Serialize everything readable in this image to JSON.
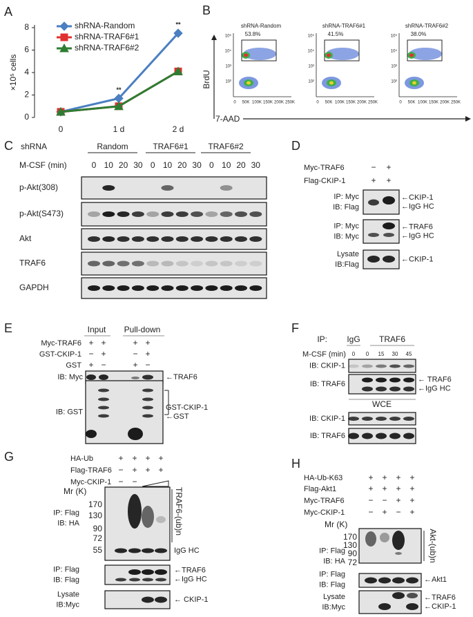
{
  "chart_data": {
    "type": "line",
    "x": [
      "0",
      "1 d",
      "2 d"
    ],
    "ylabel": "×10⁵ cells",
    "ylim": [
      0,
      8
    ],
    "yticks": [
      0,
      2,
      4,
      6,
      8
    ],
    "series": [
      {
        "name": "shRNA-Random",
        "color": "#4a7fc1",
        "marker": "diamond",
        "values": [
          0.5,
          1.7,
          7.5
        ]
      },
      {
        "name": "shRNA-TRAF6#1",
        "color": "#e03030",
        "marker": "square",
        "values": [
          0.5,
          1.0,
          4.1
        ]
      },
      {
        "name": "shRNA-TRAF6#2",
        "color": "#2e7d32",
        "marker": "triangle",
        "values": [
          0.5,
          1.0,
          4.1
        ]
      }
    ],
    "annotations": [
      "**",
      "**"
    ]
  },
  "panel_labels": [
    "A",
    "B",
    "C",
    "D",
    "E",
    "F",
    "G",
    "H"
  ],
  "panel_b": {
    "titles": [
      "shRNA-Random",
      "shRNA-TRAF6#1",
      "shRNA-TRAF6#2"
    ],
    "percents": [
      "53.8%",
      "41.5%",
      "38.0%"
    ],
    "y_label": "BrdU",
    "x_label": "7-AAD",
    "y_ticks": [
      "10⁵",
      "10⁴",
      "10³",
      "10²"
    ],
    "x_ticks": [
      "0",
      "50K",
      "100K",
      "150K",
      "200K",
      "250K"
    ]
  },
  "panel_c": {
    "shrna": "shRNA",
    "groups": [
      "Random",
      "TRAF6#1",
      "TRAF6#2"
    ],
    "mcsf": "M-CSF (min)",
    "times": [
      "0",
      "10",
      "20",
      "30"
    ],
    "rows": [
      "p-Akt(308)",
      "p-Akt(S473)",
      "Akt",
      "TRAF6",
      "GAPDH"
    ]
  },
  "panel_d": {
    "conditions": [
      {
        "name": "Myc-TRAF6",
        "signs": [
          "−",
          "+"
        ]
      },
      {
        "name": "Flag-CKIP-1",
        "signs": [
          "+",
          "+"
        ]
      }
    ],
    "blots": [
      {
        "left": [
          "IP: Myc",
          "IB: Flag"
        ],
        "right": [
          "←CKIP-1",
          "←IgG HC"
        ]
      },
      {
        "left": [
          "IP: Myc",
          "IB: Myc"
        ],
        "right": [
          "←TRAF6",
          "←IgG HC"
        ]
      },
      {
        "left": [
          "Lysate",
          "IB:Flag"
        ],
        "right": [
          "←CKIP-1"
        ]
      }
    ]
  },
  "panel_e": {
    "headers": [
      "Input",
      "Pull-down"
    ],
    "conditions": [
      {
        "name": "Myc-TRAF6",
        "signs": [
          "+",
          "+",
          "+",
          "+"
        ]
      },
      {
        "name": "GST-CKIP-1",
        "signs": [
          "−",
          "+",
          "−",
          "+"
        ]
      },
      {
        "name": "GST",
        "signs": [
          "+",
          "−",
          "+",
          "−"
        ]
      }
    ],
    "blots": [
      {
        "left": [
          "IB: Myc"
        ],
        "right": [
          "←TRAF6"
        ]
      },
      {
        "left": [
          "IB: GST"
        ],
        "right": [
          "GST-CKIP-1",
          "←GST"
        ]
      }
    ]
  },
  "panel_f": {
    "ip": "IP:",
    "ip_groups": [
      "IgG",
      "TRAF6"
    ],
    "mcsf": "M-CSF (min)",
    "times": [
      "0",
      "0",
      "15",
      "30",
      "45"
    ],
    "wce": "WCE",
    "blots": [
      {
        "left": [
          "IB: CKIP-1"
        ]
      },
      {
        "left": [
          "IB: TRAF6"
        ],
        "right": [
          "← TRAF6",
          "←IgG HC"
        ]
      },
      {
        "left": [
          "IB: CKIP-1"
        ]
      },
      {
        "left": [
          "IB: TRAF6"
        ]
      }
    ]
  },
  "panel_g": {
    "conditions": [
      {
        "name": "HA-Ub",
        "signs": [
          "+",
          "+",
          "+",
          "+"
        ]
      },
      {
        "name": "Flag-TRAF6",
        "signs": [
          "−",
          "+",
          "+",
          "+"
        ]
      },
      {
        "name": "Myc-CKIP-1",
        "signs": [
          "−",
          "−"
        ]
      }
    ],
    "mr": "Mr (K)",
    "markers": [
      "170",
      "130",
      "90",
      "72",
      "55"
    ],
    "ub_label": "TRAF6-(ub)n",
    "blots": [
      {
        "left": [
          "IP: Flag",
          "IB: HA"
        ],
        "right": [
          "IgG HC"
        ]
      },
      {
        "left": [
          "IP: Flag",
          "IB: Flag"
        ],
        "right": [
          "←TRAF6",
          "←IgG HC"
        ]
      },
      {
        "left": [
          "Lysate",
          "IB:Myc"
        ],
        "right": [
          "← CKIP-1"
        ]
      }
    ]
  },
  "panel_h": {
    "conditions": [
      {
        "name": "HA-Ub-K63",
        "signs": [
          "+",
          "+",
          "+",
          "+"
        ]
      },
      {
        "name": "Flag-Akt1",
        "signs": [
          "+",
          "+",
          "+",
          "+"
        ]
      },
      {
        "name": "Myc-TRAF6",
        "signs": [
          "−",
          "−",
          "+",
          "+"
        ]
      },
      {
        "name": "Myc-CKIP-1",
        "signs": [
          "−",
          "+",
          "−",
          "+"
        ]
      }
    ],
    "mr": "Mr (K)",
    "markers": [
      "170",
      "130",
      "90",
      "72"
    ],
    "ub_label": "Akt-(ub)n",
    "blots": [
      {
        "left": [
          "IP: Flag",
          "IB: HA"
        ]
      },
      {
        "left": [
          "IP: Flag",
          "IB: Flag"
        ],
        "right": [
          "←Akt1"
        ]
      },
      {
        "left": [
          "Lysate",
          "IB:Myc"
        ],
        "right": [
          "←TRAF6",
          "←CKIP-1"
        ]
      }
    ]
  }
}
